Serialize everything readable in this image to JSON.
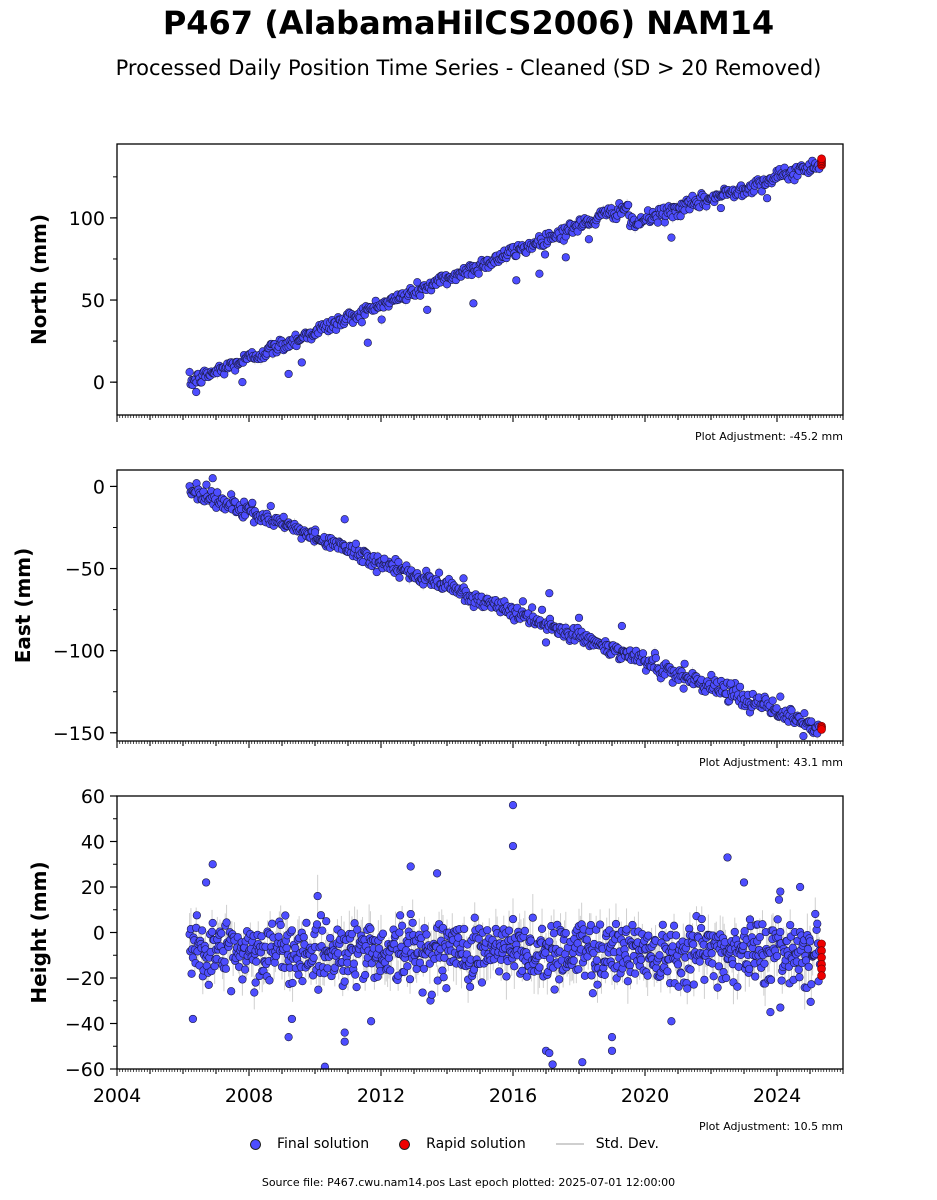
{
  "title": "P467 (AlabamaHilCS2006) NAM14",
  "subtitle": "Processed Daily Position Time Series - Cleaned (SD > 20 Removed)",
  "legend": {
    "final": "Final solution",
    "rapid": "Rapid solution",
    "std": "Std. Dev."
  },
  "source_text": "Source file: P467.cwu.nam14.pos  Last epoch plotted: 2025-07-01 12:00:00",
  "colors": {
    "final": "#4d4dff",
    "rapid": "#ee0000",
    "std": "#c8c8c8",
    "marker_edge": "#1a1a40"
  },
  "chart_data": [
    {
      "type": "scatter",
      "ylabel": "North (mm)",
      "adjustment": "Plot Adjustment: -45.2 mm",
      "xlim": [
        2004,
        2026
      ],
      "ylim": [
        -20,
        145
      ],
      "yticks": [
        0,
        50,
        100
      ],
      "x_tick_labels_shown": false,
      "data_start": 2006.2,
      "data_end": 2025.3,
      "trend": [
        [
          2006.2,
          0
        ],
        [
          2019.45,
          107
        ],
        [
          2019.55,
          96
        ],
        [
          2025.3,
          133
        ]
      ],
      "scatter_sd": 2.2,
      "outliers": [
        [
          2006.4,
          -6
        ],
        [
          2007.8,
          0
        ],
        [
          2009.2,
          5
        ],
        [
          2009.6,
          12
        ],
        [
          2011.6,
          24
        ],
        [
          2013.4,
          44
        ],
        [
          2014.8,
          48
        ],
        [
          2016.1,
          62
        ],
        [
          2016.8,
          66
        ],
        [
          2017.6,
          76
        ],
        [
          2018.3,
          87
        ],
        [
          2019.8,
          96
        ],
        [
          2020.8,
          88
        ],
        [
          2022.3,
          106
        ],
        [
          2023.7,
          112
        ]
      ],
      "rapid": {
        "x": 2025.35,
        "y": [
          132,
          133,
          134,
          135,
          136
        ]
      }
    },
    {
      "type": "scatter",
      "ylabel": "East (mm)",
      "adjustment": "Plot Adjustment: 43.1 mm",
      "xlim": [
        2004,
        2026
      ],
      "ylim": [
        -155,
        10
      ],
      "yticks": [
        0,
        -50,
        -100,
        -150
      ],
      "x_tick_labels_shown": false,
      "data_start": 2006.2,
      "data_end": 2025.3,
      "trend": [
        [
          2006.2,
          -2
        ],
        [
          2025.3,
          -147
        ]
      ],
      "scatter_sd": 2.5,
      "outliers": [
        [
          2006.9,
          5
        ],
        [
          2008.1,
          -10
        ],
        [
          2010.0,
          -28
        ],
        [
          2010.9,
          -20
        ],
        [
          2012.1,
          -44
        ],
        [
          2014.5,
          -56
        ],
        [
          2016.3,
          -70
        ],
        [
          2017.0,
          -95
        ],
        [
          2017.1,
          -65
        ],
        [
          2018.0,
          -80
        ],
        [
          2019.3,
          -85
        ],
        [
          2021.2,
          -108
        ],
        [
          2022.6,
          -120
        ],
        [
          2024.1,
          -128
        ],
        [
          2024.8,
          -152
        ]
      ],
      "rapid": {
        "x": 2025.35,
        "y": [
          -146,
          -147,
          -148
        ]
      }
    },
    {
      "type": "scatter",
      "ylabel": "Height (mm)",
      "adjustment": "Plot Adjustment: 10.5 mm",
      "xlim": [
        2004,
        2026
      ],
      "ylim": [
        -60,
        60
      ],
      "yticks": [
        60,
        40,
        20,
        0,
        -20,
        -40,
        -60
      ],
      "xticks": [
        2004,
        2008,
        2012,
        2016,
        2020,
        2024
      ],
      "x_tick_labels_shown": true,
      "data_start": 2006.2,
      "data_end": 2025.3,
      "trend": [
        [
          2006.2,
          -8
        ],
        [
          2025.3,
          -8
        ]
      ],
      "scatter_sd": 7,
      "outliers": [
        [
          2006.3,
          -38
        ],
        [
          2006.7,
          22
        ],
        [
          2006.9,
          30
        ],
        [
          2008.2,
          -22
        ],
        [
          2009.2,
          -46
        ],
        [
          2009.3,
          -38
        ],
        [
          2010.3,
          -59
        ],
        [
          2010.9,
          -48
        ],
        [
          2010.9,
          -44
        ],
        [
          2011.7,
          -39
        ],
        [
          2012.9,
          29
        ],
        [
          2013.7,
          26
        ],
        [
          2016.0,
          56
        ],
        [
          2016.0,
          38
        ],
        [
          2017.0,
          -52
        ],
        [
          2017.1,
          -53
        ],
        [
          2017.2,
          -58
        ],
        [
          2018.1,
          -57
        ],
        [
          2019.0,
          -52
        ],
        [
          2019.0,
          -46
        ],
        [
          2020.8,
          -39
        ],
        [
          2022.5,
          33
        ],
        [
          2023.0,
          22
        ],
        [
          2023.8,
          -35
        ],
        [
          2024.1,
          -33
        ],
        [
          2024.1,
          18
        ],
        [
          2024.7,
          20
        ]
      ],
      "rapid": {
        "x": 2025.35,
        "y": [
          -5,
          -8,
          -11,
          -14,
          -16,
          -19
        ]
      }
    }
  ]
}
